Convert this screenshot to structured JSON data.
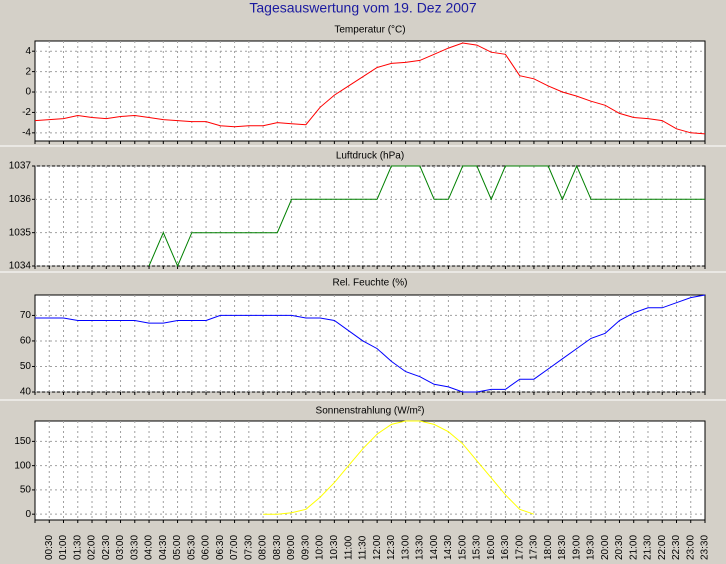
{
  "title": "Tagesauswertung vom 19. Dez 2007",
  "chart_data": [
    {
      "type": "line",
      "title": "Temperatur (°C)",
      "color": "#ff0000",
      "ylim": [
        -4.8,
        5.0
      ],
      "yticks": [
        -4,
        -2,
        0,
        2,
        4
      ],
      "grid": true,
      "values": [
        -2.8,
        -2.7,
        -2.6,
        -2.3,
        -2.5,
        -2.6,
        -2.4,
        -2.3,
        -2.5,
        -2.7,
        -2.8,
        -2.9,
        -2.9,
        -3.3,
        -3.4,
        -3.3,
        -3.3,
        -3.0,
        -3.1,
        -3.2,
        -1.5,
        -0.3,
        0.6,
        1.5,
        2.4,
        2.8,
        2.9,
        3.1,
        3.7,
        4.3,
        4.8,
        4.6,
        3.9,
        3.7,
        1.6,
        1.3,
        0.6,
        0.0,
        -0.4,
        -0.9,
        -1.3,
        -2.1,
        -2.5,
        -2.6,
        -2.8,
        -3.6,
        -4.0,
        -4.1
      ]
    },
    {
      "type": "line",
      "title": "Luftdruck (hPa)",
      "color": "#008000",
      "ylim": [
        1034,
        1037
      ],
      "yticks": [
        1034,
        1035,
        1036,
        1037
      ],
      "grid": true,
      "values": [
        null,
        null,
        null,
        null,
        null,
        null,
        null,
        null,
        1034,
        1035,
        1034,
        1035,
        1035,
        1035,
        1035,
        1035,
        1035,
        1035,
        1036,
        1036,
        1036,
        1036,
        1036,
        1036,
        1036,
        1037,
        1037,
        1037,
        1036,
        1036,
        1037,
        1037,
        1036,
        1037,
        1037,
        1037,
        1037,
        1036,
        1037,
        1036,
        1036,
        1036,
        1036,
        1036,
        1036,
        1036,
        1036,
        1036
      ]
    },
    {
      "type": "line",
      "title": "Rel. Feuchte (%)",
      "color": "#0000ff",
      "ylim": [
        40,
        78
      ],
      "yticks": [
        40,
        50,
        60,
        70
      ],
      "grid": true,
      "values": [
        69,
        69,
        69,
        68,
        68,
        68,
        68,
        68,
        67,
        67,
        68,
        68,
        68,
        70,
        70,
        70,
        70,
        70,
        70,
        69,
        69,
        68,
        64,
        60,
        57,
        52,
        48,
        46,
        43,
        42,
        40,
        40,
        41,
        41,
        45,
        45,
        49,
        53,
        57,
        61,
        63,
        68,
        71,
        73,
        73,
        75,
        77,
        78
      ]
    },
    {
      "type": "line",
      "title": "Sonnenstrahlung (W/m²)",
      "color": "#ffff00",
      "ylim": [
        -12,
        192
      ],
      "yticks": [
        0,
        50,
        100,
        150
      ],
      "grid": true,
      "categories": [
        null,
        "00:30",
        "01:00",
        "01:30",
        "02:00",
        "02:30",
        "03:00",
        "03:30",
        "04:00",
        "04:30",
        "05:00",
        "05:30",
        "06:00",
        "06:30",
        "07:00",
        "07:30",
        "08:00",
        "08:30",
        "09:00",
        "09:30",
        "10:00",
        "10:30",
        "11:00",
        "11:30",
        "12:00",
        "12:30",
        "13:00",
        "13:30",
        "14:00",
        "14:30",
        "15:00",
        "15:30",
        "16:00",
        "16:30",
        "17:00",
        "17:30",
        "18:00",
        "18:30",
        "19:00",
        "19:30",
        "20:00",
        "20:30",
        "21:00",
        "21:30",
        "22:00",
        "22:30",
        "23:00",
        "23:30"
      ],
      "values": [
        null,
        null,
        null,
        null,
        null,
        null,
        null,
        null,
        null,
        null,
        null,
        null,
        null,
        null,
        null,
        null,
        0,
        0,
        3,
        10,
        35,
        65,
        100,
        135,
        165,
        185,
        192,
        192,
        185,
        170,
        145,
        110,
        75,
        40,
        10,
        0,
        null,
        null,
        null,
        null,
        null,
        null,
        null,
        null,
        null,
        null,
        null,
        null
      ]
    }
  ]
}
